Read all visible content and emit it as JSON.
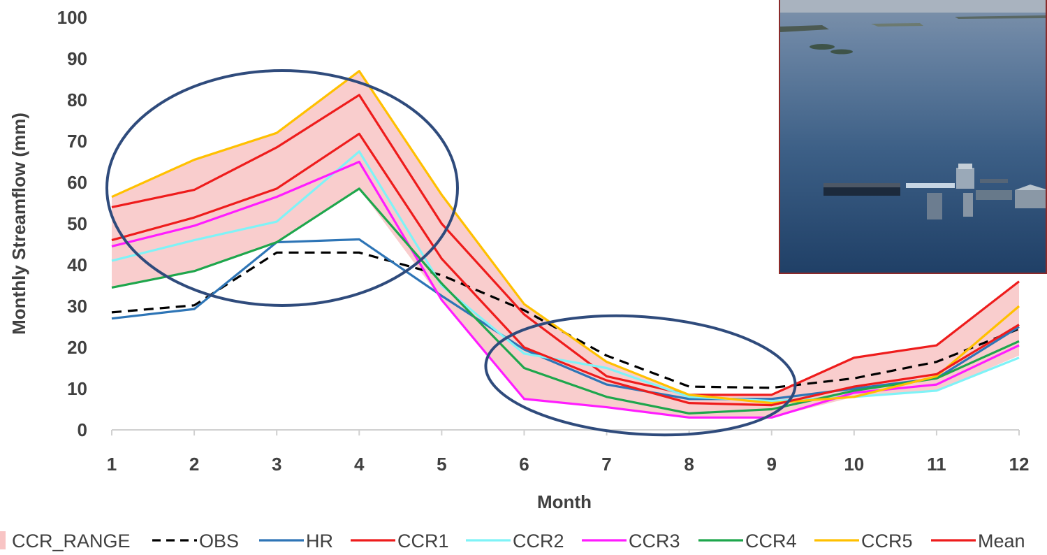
{
  "chart_data": {
    "type": "line",
    "title": "",
    "xlabel": "Month",
    "ylabel": "Monthly Streamflow (mm)",
    "x": [
      1,
      2,
      3,
      4,
      5,
      6,
      7,
      8,
      9,
      10,
      11,
      12
    ],
    "xticks": [
      "1",
      "2",
      "3",
      "4",
      "5",
      "6",
      "7",
      "8",
      "9",
      "10",
      "11",
      "12"
    ],
    "ylim": [
      0,
      100
    ],
    "yticks": [
      "0",
      "10",
      "20",
      "30",
      "40",
      "50",
      "60",
      "70",
      "80",
      "90",
      "100"
    ],
    "grid": false,
    "legend_position": "bottom",
    "range_band": {
      "name": "CCR_RANGE",
      "color": "#f8c4c4",
      "upper": [
        56.5,
        65.5,
        72.0,
        87.0,
        57.0,
        30.5,
        16.5,
        8.5,
        8.5,
        17.5,
        20.5,
        36.0
      ],
      "lower": [
        34.5,
        38.5,
        45.5,
        58.5,
        31.5,
        7.5,
        5.5,
        3.0,
        3.0,
        8.0,
        9.5,
        18.0
      ]
    },
    "series": [
      {
        "name": "OBS",
        "color": "#000000",
        "dashed": true,
        "values": [
          28.5,
          30.2,
          43.0,
          43.0,
          37.5,
          29.0,
          18.0,
          10.5,
          10.2,
          12.5,
          16.5,
          24.5
        ]
      },
      {
        "name": "HR",
        "color": "#2e75b6",
        "dashed": false,
        "values": [
          27.0,
          29.3,
          45.5,
          46.2,
          32.5,
          19.5,
          11.0,
          7.5,
          7.5,
          10.0,
          12.5,
          25.0
        ]
      },
      {
        "name": "CCR1",
        "color": "#ee1c1c",
        "dashed": false,
        "values": [
          54.0,
          58.2,
          68.5,
          81.2,
          50.0,
          28.0,
          13.0,
          8.5,
          8.5,
          17.5,
          20.5,
          36.0
        ]
      },
      {
        "name": "CCR2",
        "color": "#7ff3f7",
        "dashed": false,
        "values": [
          41.0,
          46.0,
          50.5,
          67.5,
          35.0,
          18.5,
          15.0,
          8.0,
          7.0,
          8.0,
          9.5,
          17.5
        ]
      },
      {
        "name": "CCR3",
        "color": "#ff1cff",
        "dashed": false,
        "values": [
          44.5,
          49.5,
          56.5,
          65.0,
          31.5,
          7.5,
          5.5,
          3.0,
          3.0,
          9.0,
          11.0,
          20.5
        ]
      },
      {
        "name": "CCR4",
        "color": "#1ea64c",
        "dashed": false,
        "values": [
          34.5,
          38.5,
          45.5,
          58.5,
          35.5,
          15.0,
          8.0,
          4.0,
          5.0,
          9.5,
          12.5,
          21.5
        ]
      },
      {
        "name": "CCR5",
        "color": "#ffc000",
        "dashed": false,
        "values": [
          56.5,
          65.5,
          72.0,
          87.0,
          57.0,
          30.5,
          16.5,
          8.5,
          6.5,
          8.0,
          13.0,
          30.0
        ]
      },
      {
        "name": "Mean",
        "color": "#ee1c1c",
        "dashed": false,
        "values": [
          46.0,
          51.5,
          58.5,
          71.8,
          41.5,
          20.0,
          12.0,
          6.5,
          6.0,
          10.5,
          13.5,
          25.5
        ]
      }
    ],
    "legend": [
      "CCR_RANGE",
      "OBS",
      "HR",
      "CCR1",
      "CCR2",
      "CCR3",
      "CCR4",
      "CCR5",
      "Mean"
    ],
    "annotation_ellipse_color": "#2f4b7c",
    "inset_photo": "aerial-flood-photo"
  }
}
